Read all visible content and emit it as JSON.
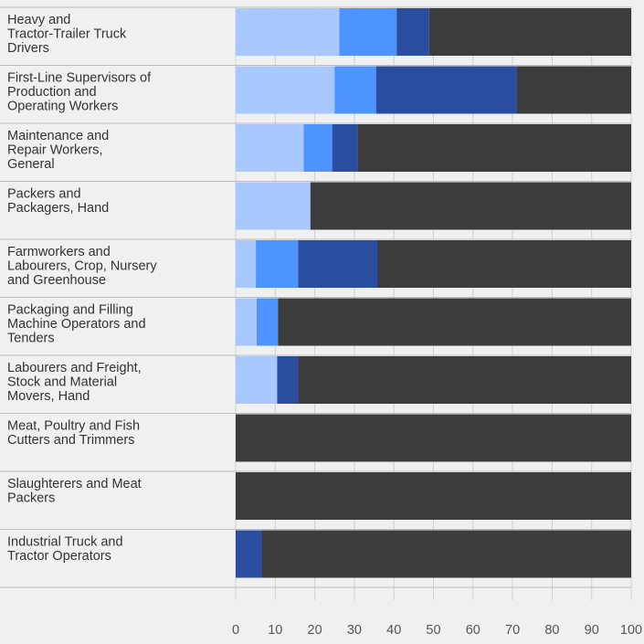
{
  "chart_data": {
    "type": "bar",
    "orientation": "horizontal",
    "stacked": true,
    "title": "",
    "xlabel": "",
    "ylabel": "",
    "xlim": [
      0,
      100
    ],
    "x_ticks": [
      "0",
      "10",
      "20",
      "30",
      "40",
      "50",
      "60",
      "70",
      "80",
      "90",
      "100"
    ],
    "legend": "none",
    "grid": true,
    "categories": [
      [
        "Heavy and",
        "Tractor-Trailer Truck",
        "Drivers"
      ],
      [
        "First-Line Supervisors of",
        "Production and",
        "Operating Workers"
      ],
      [
        "Maintenance and",
        "Repair Workers,",
        "General"
      ],
      [
        "Packers and",
        "Packagers, Hand"
      ],
      [
        "Farmworkers and",
        "Labourers, Crop, Nursery",
        "and Greenhouse"
      ],
      [
        "Packaging and Filling",
        "Machine Operators and",
        "Tenders"
      ],
      [
        "Labourers and Freight,",
        "Stock and Material",
        "Movers, Hand"
      ],
      [
        "Meat, Poultry and Fish",
        "Cutters and Trimmers"
      ],
      [
        "Slaughterers and Meat",
        "Packers"
      ],
      [
        "Industrial Truck and",
        "Tractor Operators"
      ]
    ],
    "series": [
      {
        "color": "#a8c8ff",
        "values": [
          26.2,
          25,
          17.2,
          18.9,
          5.1,
          5.3,
          10.5,
          0,
          0,
          0
        ]
      },
      {
        "color": "#4d94ff",
        "values": [
          14.5,
          10.5,
          7.2,
          0,
          10.7,
          5.4,
          0,
          0,
          0,
          0
        ]
      },
      {
        "color": "#2a4d9f",
        "values": [
          8.2,
          35.5,
          6.4,
          0,
          20,
          0,
          5.3,
          0,
          0,
          6.6
        ]
      },
      {
        "color": "#3c3c3c",
        "values": [
          51.1,
          29,
          69.2,
          81.1,
          64.2,
          89.3,
          84.2,
          100,
          100,
          93.4
        ]
      }
    ]
  }
}
